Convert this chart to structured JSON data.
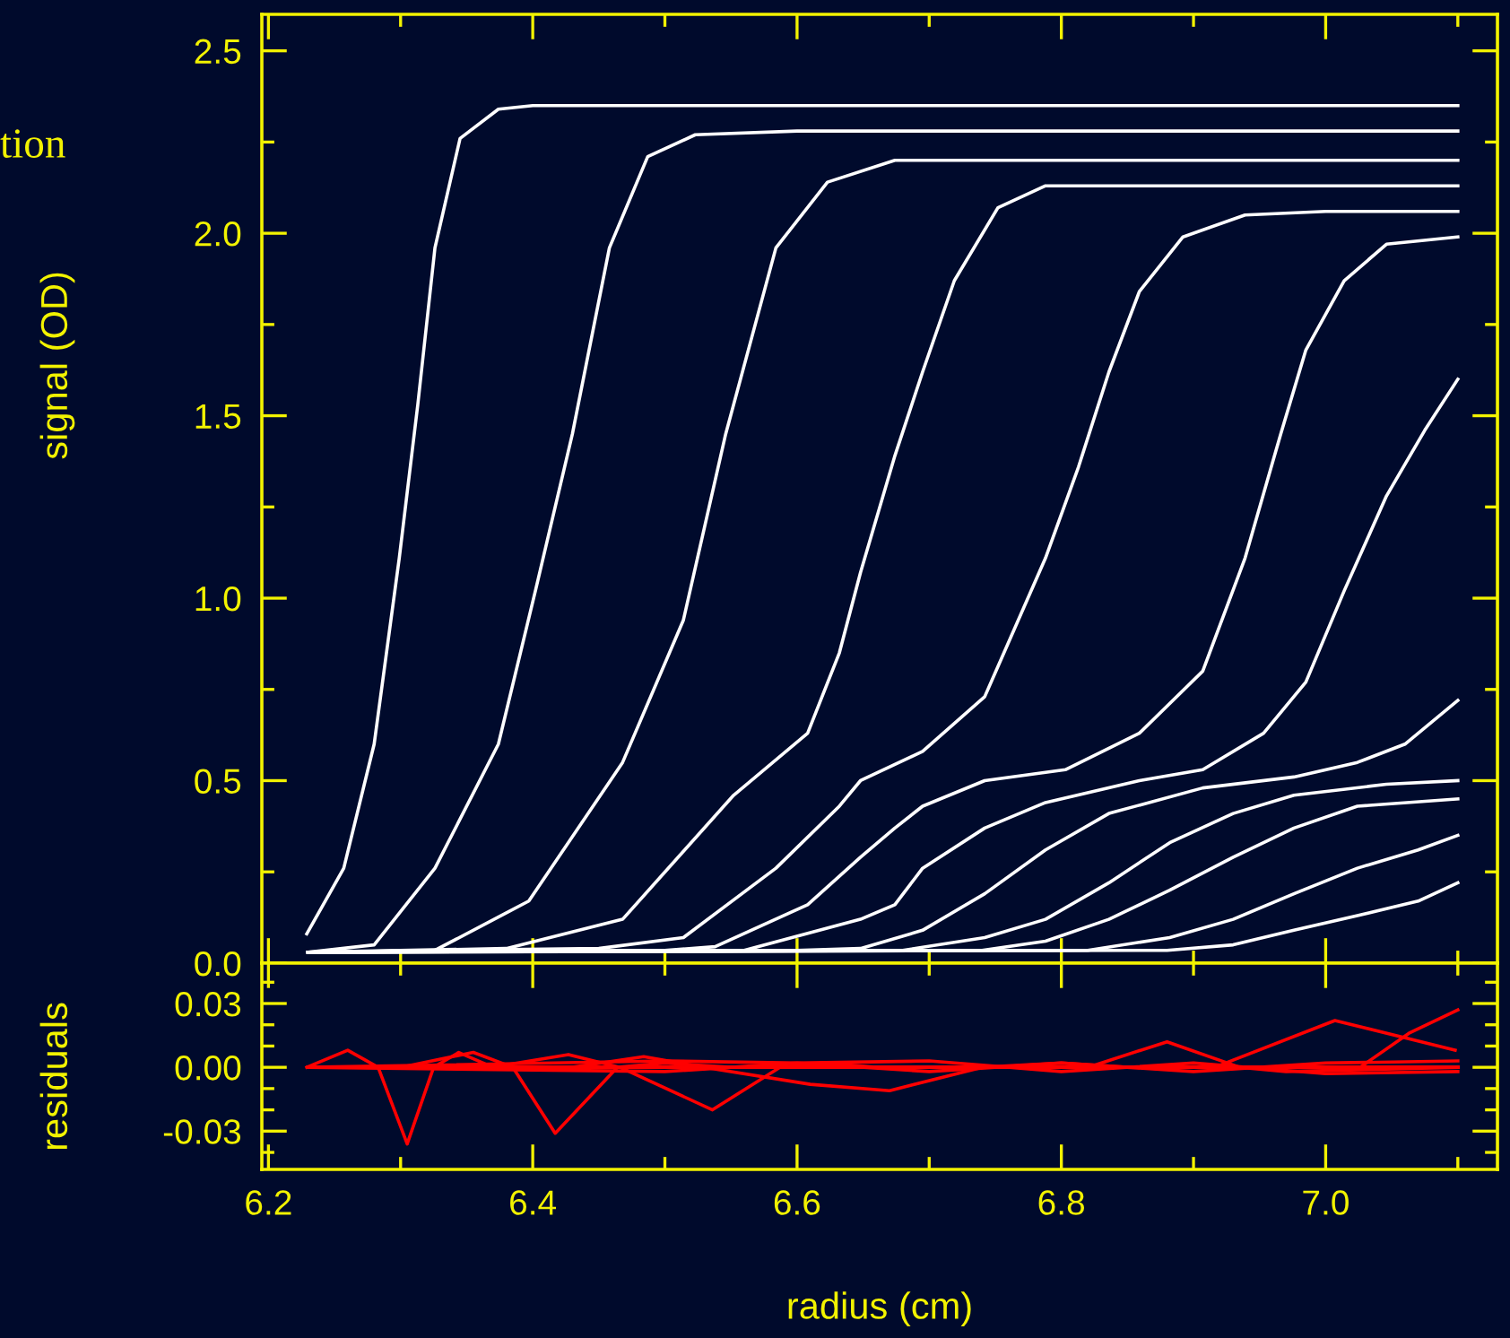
{
  "chart_data": [
    {
      "type": "line",
      "ylabel": "signal (OD)",
      "annotations": [
        "tion"
      ],
      "tick_labels": "y",
      "xlim": [
        6.195,
        7.13
      ],
      "xticks": [
        {
          "value": 6.2,
          "label": null
        },
        {
          "value": 6.3,
          "label": null
        },
        {
          "value": 6.4,
          "label": null
        },
        {
          "value": 6.5,
          "label": null
        },
        {
          "value": 6.6,
          "label": null
        },
        {
          "value": 6.7,
          "label": null
        },
        {
          "value": 6.8,
          "label": null
        },
        {
          "value": 6.9,
          "label": null
        },
        {
          "value": 7,
          "label": null
        },
        {
          "value": 7.1,
          "label": null
        }
      ],
      "ylim": [
        0,
        2.6
      ],
      "yticks": [
        {
          "value": 0,
          "label": "0.0"
        },
        {
          "value": 0.25,
          "label": null
        },
        0.5,
        {
          "value": 0.75,
          "label": null
        },
        {
          "value": 1,
          "label": "1.0"
        },
        {
          "value": 1.25,
          "label": null
        },
        1.5,
        {
          "value": 1.75,
          "label": null
        },
        {
          "value": 2,
          "label": "2.0"
        },
        {
          "value": 2.25,
          "label": null
        },
        2.5
      ],
      "series": [
        {
          "color": "#ffffff",
          "x": [
            6.229,
            6.257,
            6.28,
            6.299,
            6.313,
            6.326,
            6.345,
            6.374,
            6.4,
            7.1
          ],
          "values": [
            0.08,
            0.26,
            0.6,
            1.11,
            1.53,
            1.96,
            2.26,
            2.34,
            2.35,
            2.35
          ]
        },
        {
          "color": "#ffffff",
          "x": [
            6.23,
            6.28,
            6.326,
            6.374,
            6.402,
            6.43,
            6.458,
            6.487,
            6.523,
            6.6,
            7.1
          ],
          "values": [
            0.03,
            0.05,
            0.26,
            0.6,
            1.02,
            1.45,
            1.96,
            2.21,
            2.27,
            2.28,
            2.28
          ]
        },
        {
          "color": "#ffffff",
          "x": [
            6.23,
            6.326,
            6.397,
            6.468,
            6.514,
            6.546,
            6.584,
            6.623,
            6.674,
            6.75,
            7.1
          ],
          "values": [
            0.03,
            0.035,
            0.17,
            0.55,
            0.94,
            1.45,
            1.96,
            2.14,
            2.2,
            2.2,
            2.2
          ]
        },
        {
          "color": "#ffffff",
          "x": [
            6.23,
            6.38,
            6.468,
            6.552,
            6.608,
            6.632,
            6.648,
            6.674,
            6.695,
            6.719,
            6.752,
            6.788,
            6.85,
            7.1
          ],
          "values": [
            0.03,
            0.04,
            0.12,
            0.46,
            0.63,
            0.85,
            1.07,
            1.39,
            1.62,
            1.87,
            2.07,
            2.13,
            2.13,
            2.13
          ]
        },
        {
          "color": "#ffffff",
          "x": [
            6.23,
            6.45,
            6.514,
            6.584,
            6.632,
            6.648,
            6.695,
            6.742,
            6.788,
            6.813,
            6.836,
            6.859,
            6.892,
            6.939,
            7.0,
            7.1
          ],
          "values": [
            0.03,
            0.04,
            0.07,
            0.26,
            0.43,
            0.5,
            0.58,
            0.73,
            1.11,
            1.36,
            1.62,
            1.84,
            1.99,
            2.05,
            2.06,
            2.06
          ]
        },
        {
          "color": "#ffffff",
          "x": [
            6.23,
            6.5,
            6.538,
            6.608,
            6.648,
            6.674,
            6.695,
            6.742,
            6.803,
            6.859,
            6.907,
            6.939,
            6.966,
            6.985,
            7.014,
            7.046,
            7.1
          ],
          "values": [
            0.03,
            0.035,
            0.045,
            0.16,
            0.29,
            0.37,
            0.43,
            0.5,
            0.53,
            0.63,
            0.8,
            1.11,
            1.45,
            1.68,
            1.87,
            1.97,
            1.99
          ]
        },
        {
          "color": "#ffffff",
          "x": [
            6.23,
            6.56,
            6.648,
            6.674,
            6.695,
            6.742,
            6.788,
            6.859,
            6.907,
            6.953,
            6.985,
            7.014,
            7.046,
            7.075,
            7.1
          ],
          "values": [
            0.03,
            0.035,
            0.12,
            0.16,
            0.26,
            0.37,
            0.44,
            0.5,
            0.53,
            0.63,
            0.77,
            1.02,
            1.28,
            1.46,
            1.6
          ]
        },
        {
          "color": "#ffffff",
          "x": [
            6.23,
            6.6,
            6.648,
            6.695,
            6.742,
            6.788,
            6.836,
            6.907,
            6.976,
            7.024,
            7.06,
            7.1
          ],
          "values": [
            0.03,
            0.035,
            0.04,
            0.09,
            0.19,
            0.31,
            0.41,
            0.48,
            0.51,
            0.55,
            0.6,
            0.72
          ]
        },
        {
          "color": "#ffffff",
          "x": [
            6.23,
            6.68,
            6.742,
            6.788,
            6.836,
            6.882,
            6.93,
            6.976,
            7.046,
            7.1
          ],
          "values": [
            0.03,
            0.035,
            0.07,
            0.12,
            0.22,
            0.33,
            0.41,
            0.46,
            0.49,
            0.5
          ]
        },
        {
          "color": "#ffffff",
          "x": [
            6.23,
            6.74,
            6.788,
            6.836,
            6.882,
            6.93,
            6.976,
            7.024,
            7.1
          ],
          "values": [
            0.03,
            0.035,
            0.06,
            0.12,
            0.2,
            0.29,
            0.37,
            0.43,
            0.45
          ]
        },
        {
          "color": "#ffffff",
          "x": [
            6.23,
            6.82,
            6.882,
            6.93,
            6.976,
            7.024,
            7.07,
            7.1
          ],
          "values": [
            0.03,
            0.035,
            0.07,
            0.12,
            0.19,
            0.26,
            0.31,
            0.35
          ]
        },
        {
          "color": "#ffffff",
          "x": [
            6.23,
            6.88,
            6.93,
            6.976,
            7.024,
            7.07,
            7.1
          ],
          "values": [
            0.03,
            0.035,
            0.05,
            0.09,
            0.13,
            0.17,
            0.22
          ]
        }
      ]
    },
    {
      "type": "line",
      "xlabel": "radius (cm)",
      "ylabel": "residuals",
      "xlim": [
        6.195,
        7.13
      ],
      "xticks": [
        6.2,
        {
          "value": 6.3,
          "label": null
        },
        6.4,
        {
          "value": 6.5,
          "label": null
        },
        6.6,
        {
          "value": 6.7,
          "label": null
        },
        6.8,
        {
          "value": 6.9,
          "label": null
        },
        {
          "value": 7,
          "label": "7.0"
        },
        {
          "value": 7.1,
          "label": null
        }
      ],
      "ylim": [
        -0.048,
        0.049
      ],
      "yticks": [
        {
          "value": -0.04,
          "label": null
        },
        {
          "value": -0.03,
          "label": "-0.03"
        },
        {
          "value": -0.02,
          "label": null
        },
        {
          "value": -0.01,
          "label": null
        },
        {
          "value": 0,
          "label": "0.00"
        },
        {
          "value": 0.01,
          "label": null
        },
        {
          "value": 0.02,
          "label": null
        },
        {
          "value": 0.03,
          "label": "0.03"
        },
        {
          "value": 0.04,
          "label": null
        }
      ],
      "series": [
        {
          "color": "#ff0000",
          "x": [
            6.229,
            6.26,
            6.283,
            6.305,
            6.325,
            6.344,
            6.37,
            7.1
          ],
          "values": [
            0,
            0.008,
            0,
            -0.036,
            0,
            0.007,
            0,
            0
          ]
        },
        {
          "color": "#ff0000",
          "x": [
            6.23,
            6.3,
            6.355,
            6.385,
            6.417,
            6.464,
            6.5,
            6.55,
            7.1
          ],
          "values": [
            0,
            0,
            0.007,
            0,
            -0.031,
            0,
            0.002,
            0,
            0
          ]
        },
        {
          "color": "#ff0000",
          "x": [
            6.23,
            6.368,
            6.427,
            6.466,
            6.536,
            6.587,
            6.62,
            6.66,
            7.1
          ],
          "values": [
            0,
            0,
            0.006,
            0,
            -0.02,
            0,
            0.002,
            0,
            0
          ]
        },
        {
          "color": "#ff0000",
          "x": [
            6.23,
            6.43,
            6.484,
            6.53,
            6.61,
            6.67,
            6.74,
            6.8,
            6.85,
            7.1
          ],
          "values": [
            0,
            0,
            0.005,
            0,
            -0.008,
            -0.011,
            0,
            0.002,
            0,
            0
          ]
        },
        {
          "color": "#ff0000",
          "x": [
            6.23,
            6.82,
            6.88,
            6.935,
            6.97,
            7.1
          ],
          "values": [
            0,
            0,
            0.012,
            0,
            -0.002,
            0
          ]
        },
        {
          "color": "#ff0000",
          "x": [
            6.23,
            6.916,
            7.007,
            7.098
          ],
          "values": [
            0,
            0,
            0.022,
            0.008
          ]
        },
        {
          "color": "#ff0000",
          "x": [
            7.026,
            7.063,
            7.1
          ],
          "values": [
            0,
            0.016,
            0.027
          ]
        },
        {
          "color": "#ff0000",
          "x": [
            6.23,
            6.5,
            6.6,
            6.7,
            6.8,
            6.9,
            7.0,
            7.1
          ],
          "values": [
            0,
            0.003,
            0.002,
            -0.002,
            0.002,
            -0.002,
            0.002,
            0.003
          ]
        },
        {
          "color": "#ff0000",
          "x": [
            6.23,
            6.5,
            6.6,
            6.7,
            6.8,
            6.9,
            7.0,
            7.1
          ],
          "values": [
            0,
            -0.002,
            0.002,
            0.003,
            -0.002,
            0.002,
            -0.003,
            -0.002
          ]
        }
      ]
    }
  ]
}
